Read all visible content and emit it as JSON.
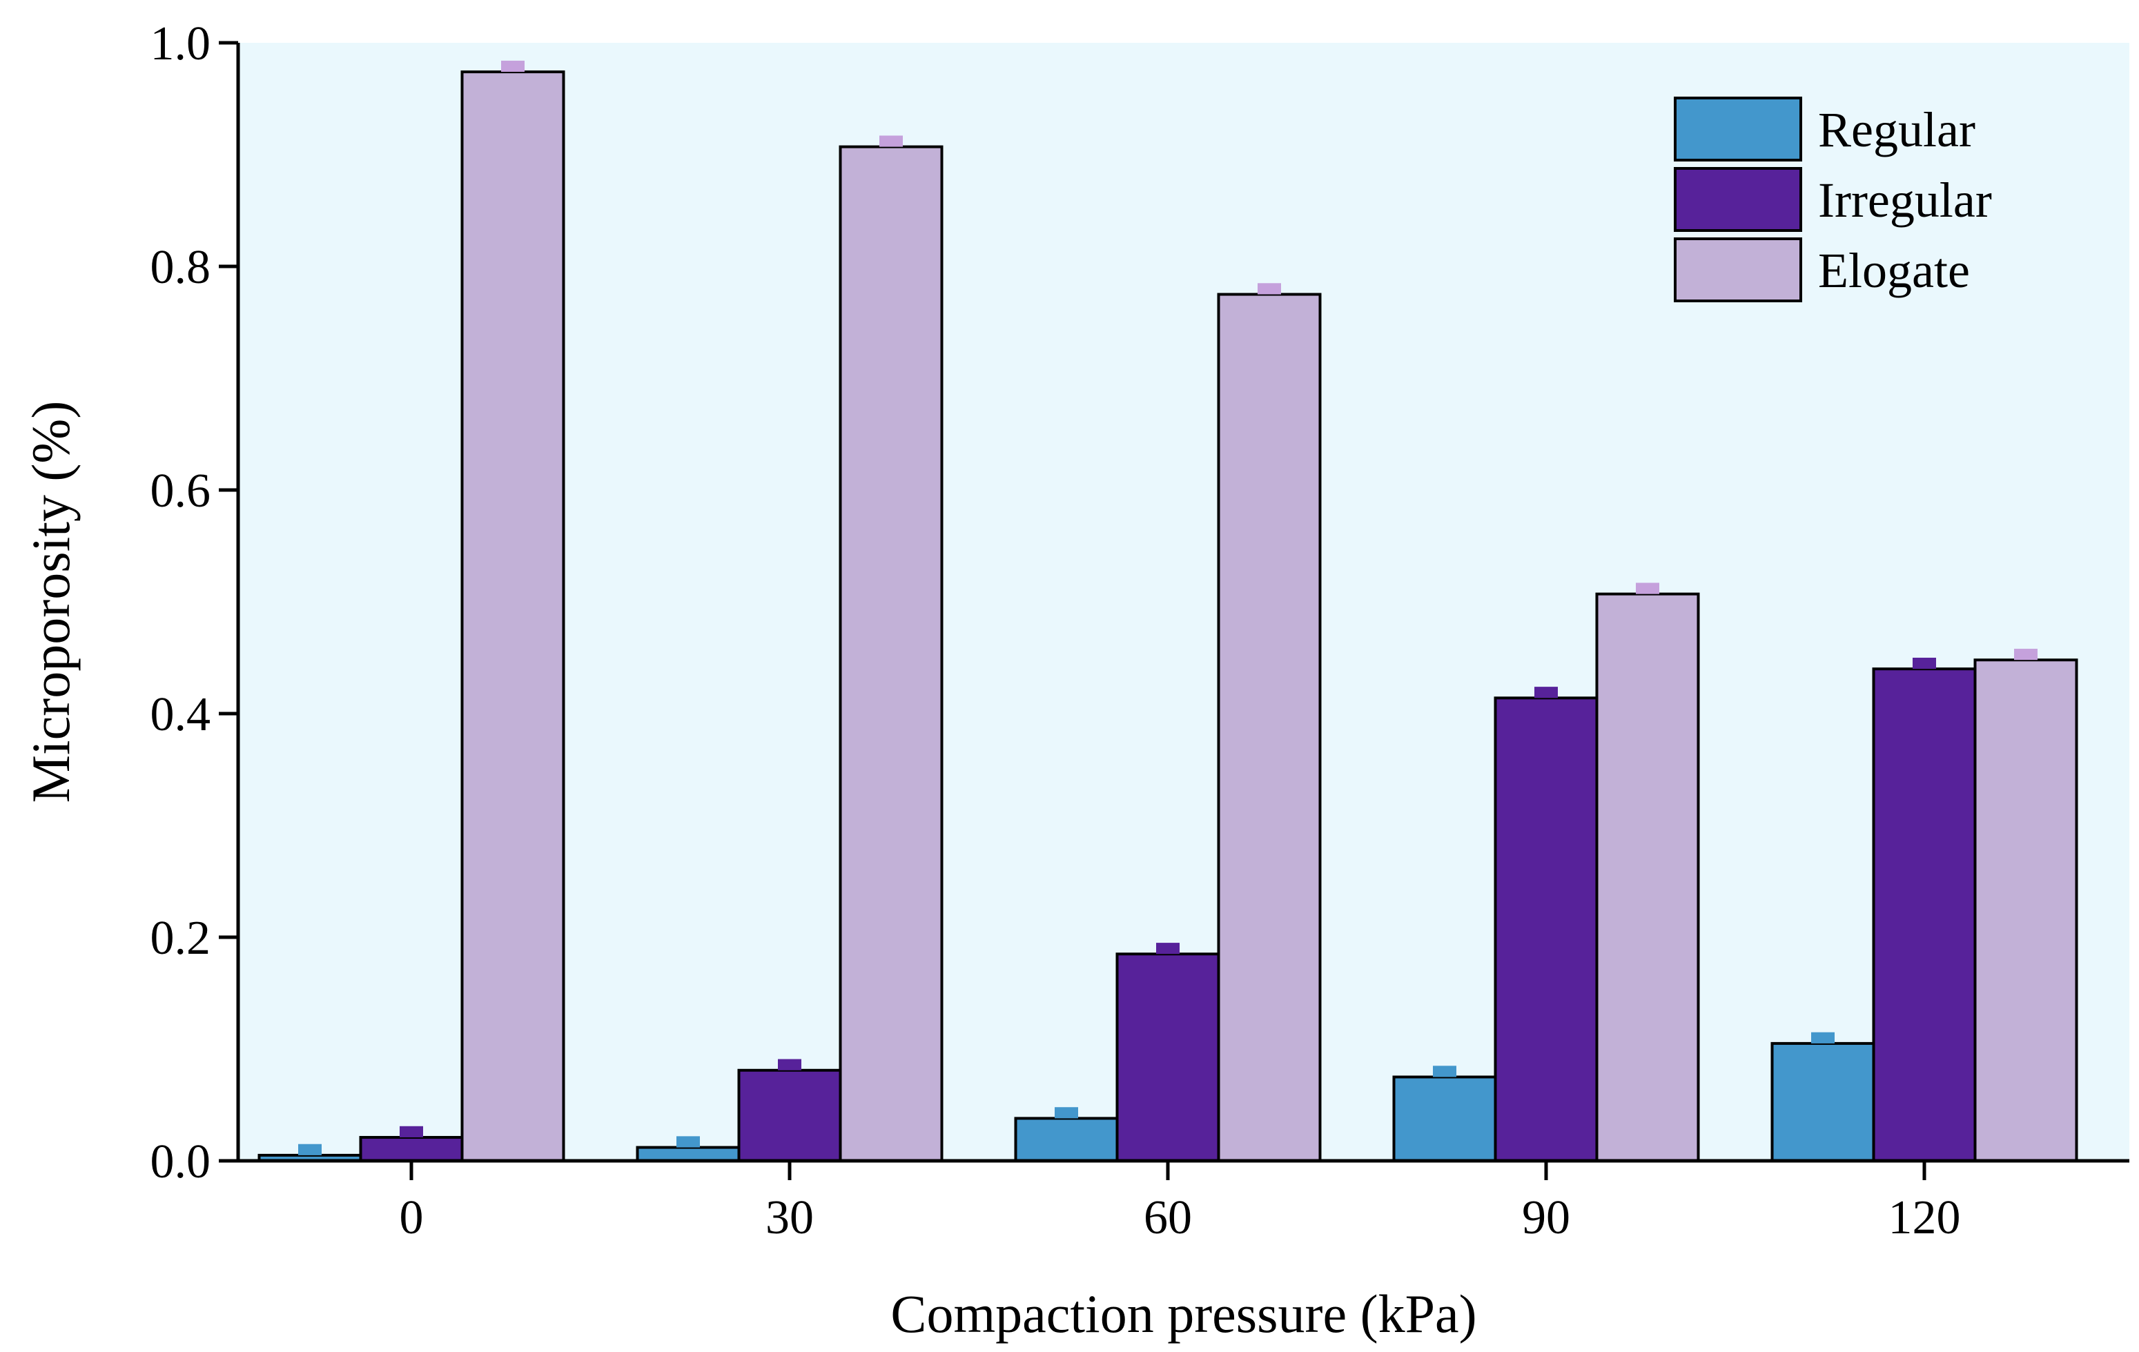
{
  "chart_data": {
    "type": "bar",
    "title": "",
    "xlabel": "Compaction pressure (kPa)",
    "ylabel": "Microporosity (%)",
    "categories": [
      "0",
      "30",
      "60",
      "90",
      "120"
    ],
    "ylim": [
      0,
      1.0
    ],
    "yticks": [
      "0.0",
      "0.2",
      "0.4",
      "0.6",
      "0.8",
      "1.0"
    ],
    "ytick_values": [
      0,
      0.2,
      0.4,
      0.6,
      0.8,
      1.0
    ],
    "grid": false,
    "legend_position": "top-right",
    "series": [
      {
        "name": "Regular",
        "color": "#4397cc",
        "error_color": "#4397cc",
        "values": [
          0.005,
          0.012,
          0.038,
          0.075,
          0.105
        ],
        "errors": [
          0.01,
          0.01,
          0.01,
          0.01,
          0.01
        ]
      },
      {
        "name": "Irregular",
        "color": "#57229a",
        "error_color": "#57229a",
        "values": [
          0.021,
          0.081,
          0.185,
          0.414,
          0.44
        ],
        "errors": [
          0.01,
          0.01,
          0.01,
          0.01,
          0.01
        ]
      },
      {
        "name": "Elogate",
        "color": "#c2b1d7",
        "error_color": "#c5a1dc",
        "values": [
          0.974,
          0.907,
          0.775,
          0.507,
          0.448
        ],
        "errors": [
          0.01,
          0.01,
          0.01,
          0.01,
          0.01
        ]
      }
    ],
    "plot_background": "#eaf8fd"
  }
}
